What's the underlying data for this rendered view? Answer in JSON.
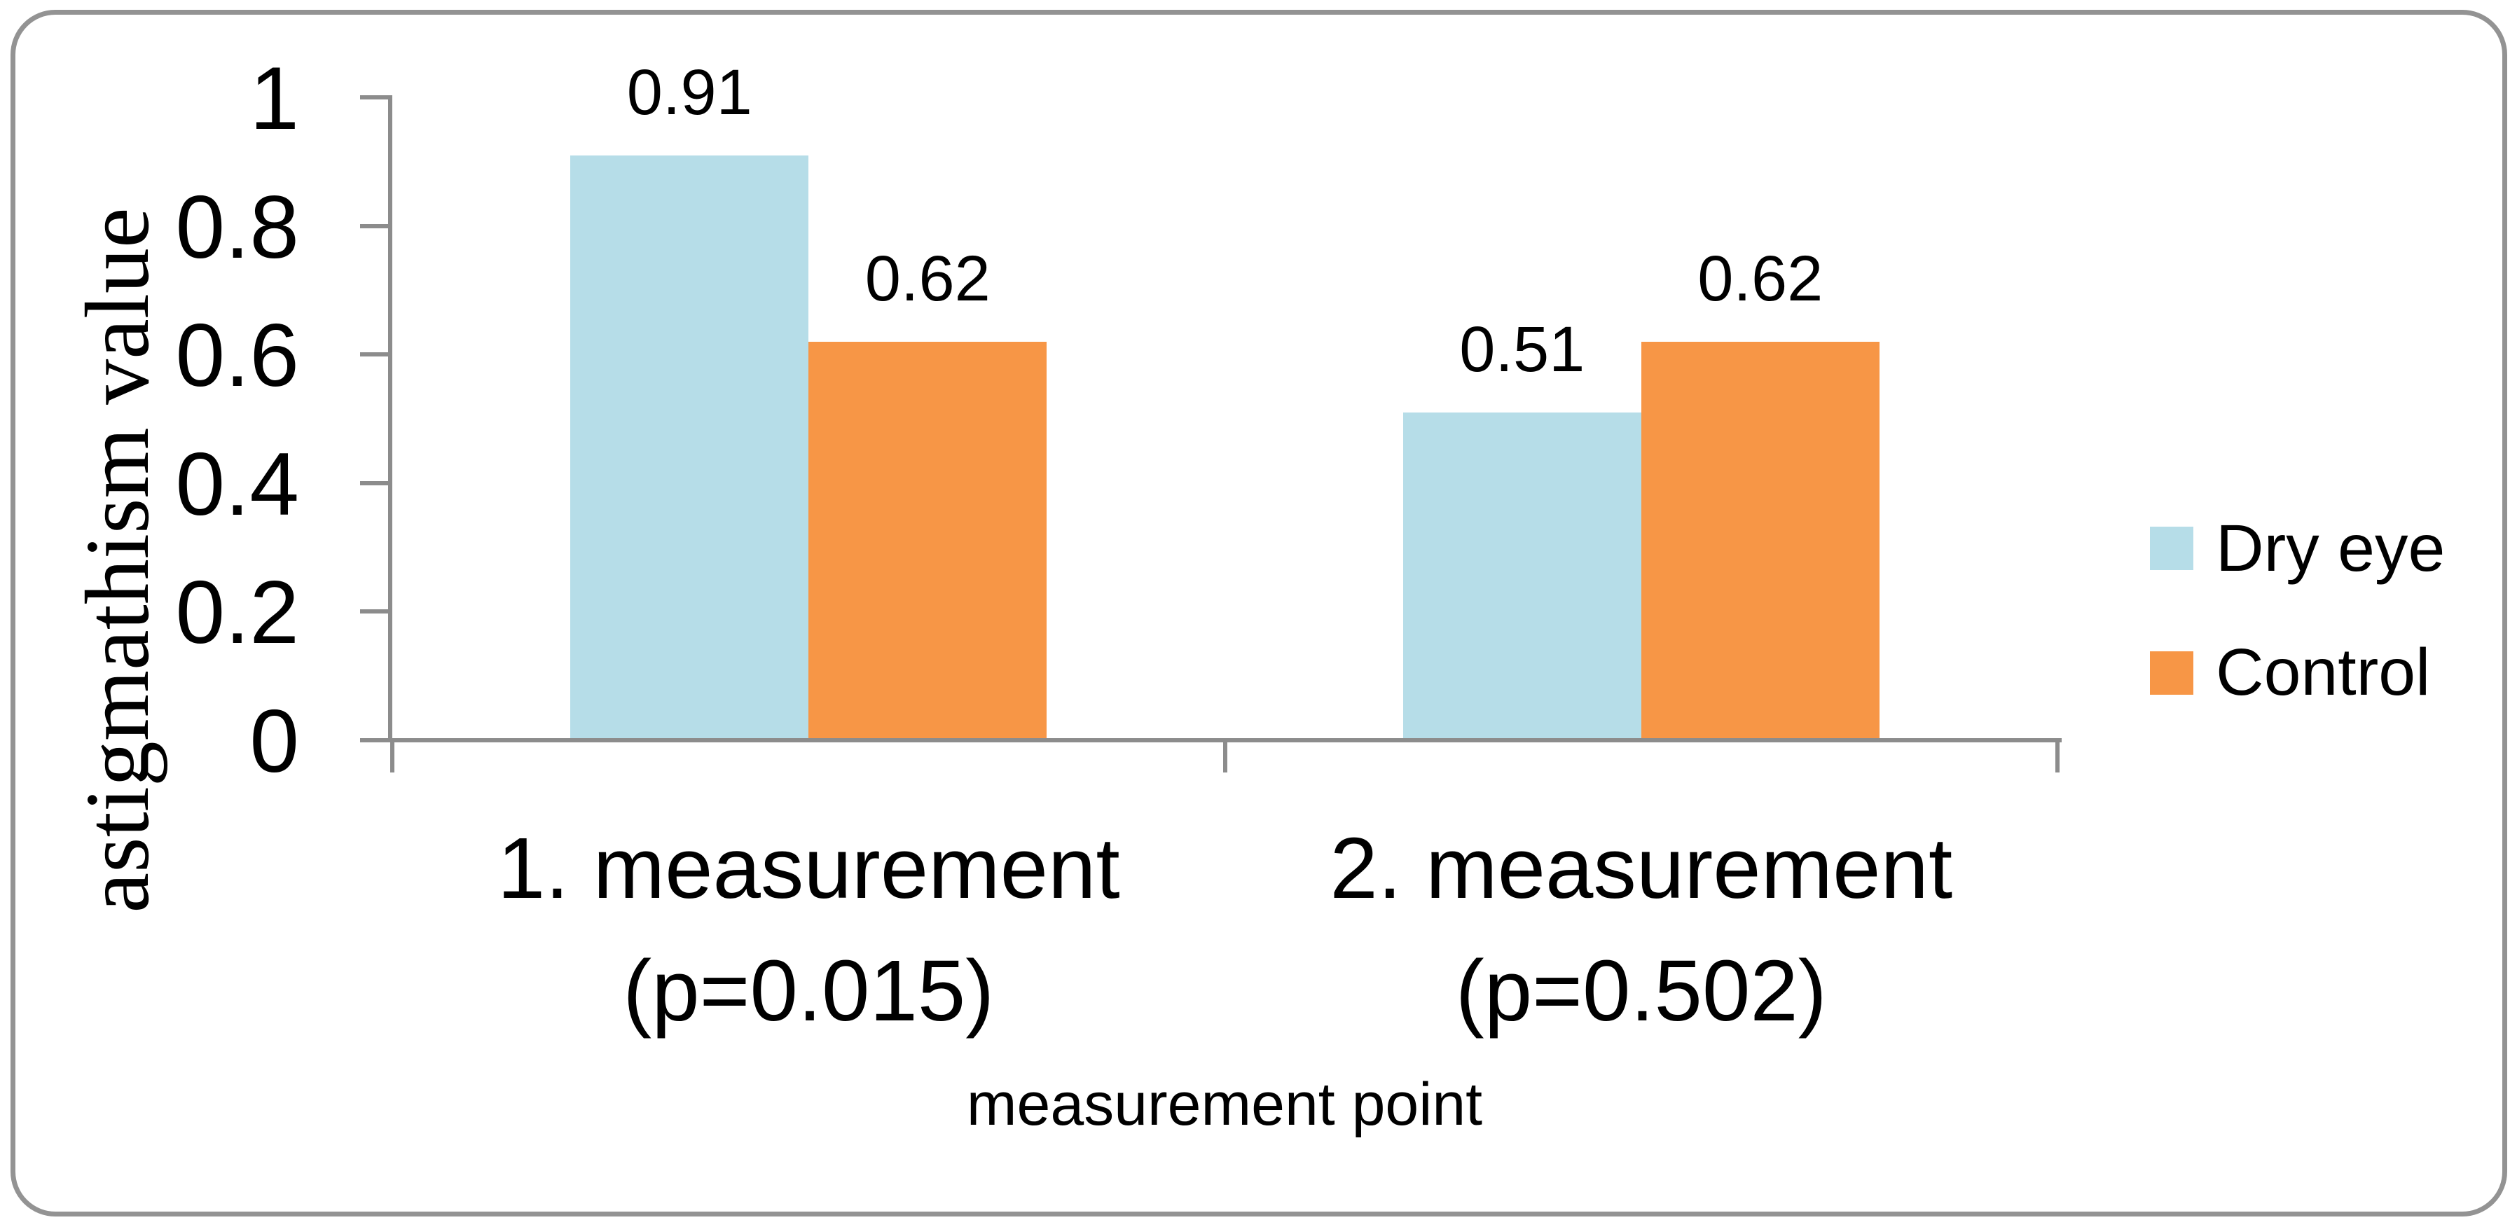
{
  "chart_data": {
    "type": "bar",
    "title": "",
    "categories": [
      "1. measurement (p=0.015)",
      "2. measurement (p=0.502)"
    ],
    "categories_lines": [
      [
        "1. measurement",
        "(p=0.015)"
      ],
      [
        "2. measurement",
        "(p=0.502)"
      ]
    ],
    "series": [
      {
        "name": "Dry eye",
        "color": "#B6DDE8",
        "values": [
          0.91,
          0.51
        ]
      },
      {
        "name": "Control",
        "color": "#F79646",
        "values": [
          0.62,
          0.62
        ]
      }
    ],
    "data_labels": [
      "0.91",
      "0.62",
      "0.51",
      "0.62"
    ],
    "xlabel": "measurement point",
    "ylabel": "astigmathism value",
    "ylim": [
      0,
      1
    ],
    "yticks": [
      {
        "value": 1,
        "label": "1"
      },
      {
        "value": 0.8,
        "label": "0.8"
      },
      {
        "value": 0.6,
        "label": "0.6"
      },
      {
        "value": 0.4,
        "label": "0.4"
      },
      {
        "value": 0.2,
        "label": "0.2"
      },
      {
        "value": 0,
        "label": "0"
      }
    ],
    "legend_position": "right",
    "grid": false,
    "axis_color": "#8C8C8C",
    "frame_color": "#939393",
    "text_color": "#000000"
  }
}
